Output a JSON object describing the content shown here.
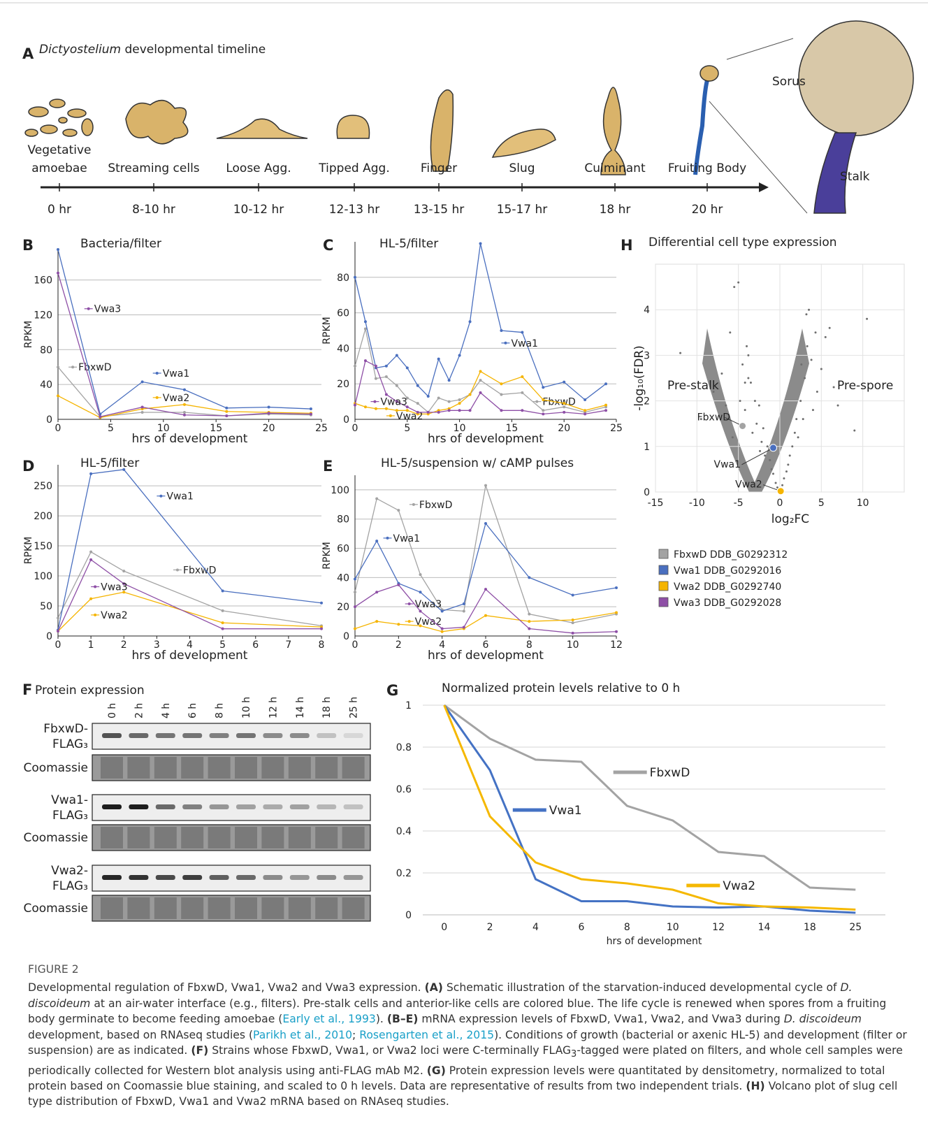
{
  "panel_a": {
    "letter": "A",
    "title_italic": "Dictyostelium",
    "title_rest": " developmental timeline",
    "stages": [
      {
        "name": [
          "Vegetative",
          "amoebae"
        ],
        "time": "0 hr"
      },
      {
        "name": [
          "Streaming cells"
        ],
        "time": "8-10 hr"
      },
      {
        "name": [
          "Loose Agg."
        ],
        "time": "10-12 hr"
      },
      {
        "name": [
          "Tipped Agg."
        ],
        "time": "12-13 hr"
      },
      {
        "name": [
          "Finger"
        ],
        "time": "13-15 hr"
      },
      {
        "name": [
          "Slug"
        ],
        "time": "15-17 hr"
      },
      {
        "name": [
          "Culminant"
        ],
        "time": "18 hr"
      },
      {
        "name": [
          "Fruiting Body"
        ],
        "time": "20 hr"
      }
    ],
    "sorus": "Sorus",
    "stalk": "Stalk"
  },
  "chart_data": [
    {
      "type": "line",
      "letter": "B",
      "title": "Bacteria/filter",
      "ylabel": "RPKM",
      "xlabel": "hrs of development",
      "x": [
        0,
        4,
        8,
        12,
        16,
        20,
        24
      ],
      "xlim": [
        0,
        25
      ],
      "xticks": [
        0,
        5,
        10,
        15,
        20,
        25
      ],
      "ylim": [
        0,
        195
      ],
      "yticks": [
        0,
        40,
        80,
        120,
        160
      ],
      "grid": true,
      "series": [
        {
          "name": "FbxwD",
          "color": "#a3a3a3",
          "values": [
            60,
            3,
            8,
            8,
            4,
            6,
            5
          ]
        },
        {
          "name": "Vwa1",
          "color": "#4a6fbf",
          "values": [
            195,
            6,
            43,
            34,
            13,
            14,
            12
          ]
        },
        {
          "name": "Vwa2",
          "color": "#f5b400",
          "values": [
            27,
            2,
            12,
            17,
            9,
            8,
            7
          ]
        },
        {
          "name": "Vwa3",
          "color": "#8e4fa6",
          "values": [
            168,
            3,
            14,
            5,
            4,
            7,
            6
          ]
        }
      ]
    },
    {
      "type": "line",
      "letter": "C",
      "title": "HL-5/filter",
      "ylabel": "RPKM",
      "xlabel": "hrs of development",
      "x": [
        0,
        1,
        2,
        3,
        4,
        5,
        6,
        7,
        8,
        9,
        10,
        11,
        12,
        14,
        16,
        18,
        20,
        22,
        24
      ],
      "xlim": [
        0,
        25
      ],
      "xticks": [
        0,
        5,
        10,
        15,
        20,
        25
      ],
      "ylim": [
        0,
        100
      ],
      "yticks": [
        0,
        20,
        40,
        60,
        80
      ],
      "grid": true,
      "series": [
        {
          "name": "FbxwD",
          "color": "#a3a3a3",
          "values": [
            30,
            51,
            23,
            24,
            19,
            12,
            9,
            4,
            12,
            10,
            11,
            14,
            22,
            14,
            15,
            5,
            7,
            4,
            7
          ]
        },
        {
          "name": "Vwa1",
          "color": "#4a6fbf",
          "values": [
            80,
            55,
            29,
            30,
            36,
            29,
            19,
            13,
            34,
            22,
            36,
            55,
            99,
            50,
            49,
            18,
            21,
            11,
            20
          ]
        },
        {
          "name": "Vwa2",
          "color": "#f5b400",
          "values": [
            9,
            7,
            6,
            6,
            5,
            5,
            3,
            3,
            5,
            6,
            9,
            14,
            27,
            20,
            24,
            11,
            9,
            5,
            8
          ]
        },
        {
          "name": "Vwa3",
          "color": "#8e4fa6",
          "values": [
            8,
            33,
            30,
            14,
            10,
            7,
            4,
            4,
            4,
            5,
            5,
            5,
            15,
            5,
            5,
            3,
            4,
            3,
            5
          ]
        }
      ]
    },
    {
      "type": "line",
      "letter": "D",
      "title": "HL-5/filter",
      "ylabel": "RPKM",
      "xlabel": "hrs of development",
      "x": [
        0,
        1,
        2,
        5,
        8
      ],
      "xlim": [
        0,
        8
      ],
      "xticks": [
        0,
        1,
        2,
        3,
        4,
        5,
        6,
        7,
        8
      ],
      "ylim": [
        0,
        285
      ],
      "yticks": [
        0,
        50,
        100,
        150,
        200,
        250
      ],
      "grid": true,
      "series": [
        {
          "name": "FbxwD",
          "color": "#a3a3a3",
          "values": [
            30,
            140,
            108,
            42,
            17
          ]
        },
        {
          "name": "Vwa1",
          "color": "#4a6fbf",
          "values": [
            10,
            270,
            277,
            75,
            55
          ]
        },
        {
          "name": "Vwa2",
          "color": "#f5b400",
          "values": [
            8,
            62,
            73,
            22,
            15
          ]
        },
        {
          "name": "Vwa3",
          "color": "#8e4fa6",
          "values": [
            8,
            127,
            87,
            12,
            12
          ]
        }
      ]
    },
    {
      "type": "line",
      "letter": "E",
      "title": "HL-5/suspension w/ cAMP pulses",
      "ylabel": "RPKM",
      "xlabel": "hrs of development",
      "x": [
        0,
        1,
        2,
        3,
        4,
        5,
        6,
        8,
        10,
        12
      ],
      "xlim": [
        0,
        12
      ],
      "xticks": [
        0,
        2,
        4,
        6,
        8,
        10,
        12
      ],
      "ylim": [
        0,
        110
      ],
      "yticks": [
        0,
        20,
        40,
        60,
        80,
        100
      ],
      "grid": true,
      "series": [
        {
          "name": "FbxwD",
          "color": "#a3a3a3",
          "values": [
            30,
            94,
            86,
            42,
            18,
            17,
            103,
            15,
            9,
            15
          ]
        },
        {
          "name": "Vwa1",
          "color": "#4a6fbf",
          "values": [
            39,
            65,
            36,
            30,
            17,
            22,
            77,
            40,
            28,
            33
          ]
        },
        {
          "name": "Vwa2",
          "color": "#f5b400",
          "values": [
            5,
            10,
            8,
            7,
            3,
            5,
            14,
            10,
            11,
            16
          ]
        },
        {
          "name": "Vwa3",
          "color": "#8e4fa6",
          "values": [
            20,
            30,
            35,
            17,
            5,
            6,
            32,
            5,
            2,
            3
          ]
        }
      ]
    },
    {
      "type": "line",
      "letter": "G",
      "title": "Normalized protein levels relative to 0 h",
      "xlabel": "hrs of development",
      "categories": [
        0,
        2,
        4,
        6,
        8,
        10,
        12,
        14,
        18,
        25
      ],
      "ylim": [
        0,
        1
      ],
      "yticks": [
        0,
        0.2,
        0.4,
        0.6,
        0.8,
        1
      ],
      "grid": true,
      "series": [
        {
          "name": "FbxwD",
          "color": "#a3a3a3",
          "values": [
            1,
            0.84,
            0.74,
            0.73,
            0.52,
            0.45,
            0.3,
            0.28,
            0.13,
            0.12
          ]
        },
        {
          "name": "Vwa1",
          "color": "#4472c4",
          "values": [
            1,
            0.69,
            0.17,
            0.065,
            0.065,
            0.04,
            0.035,
            0.04,
            0.02,
            0.01
          ]
        },
        {
          "name": "Vwa2",
          "color": "#f5b800",
          "values": [
            1,
            0.47,
            0.25,
            0.17,
            0.15,
            0.12,
            0.055,
            0.04,
            0.035,
            0.025
          ]
        }
      ]
    },
    {
      "type": "scatter",
      "letter": "H",
      "title": "Differential cell type expression",
      "xlabel": "log₂FC",
      "ylabel": "-log₁₀(FDR)",
      "xlim": [
        -15,
        15
      ],
      "xticks": [
        -15,
        -10,
        -5,
        0,
        5,
        10
      ],
      "ylim": [
        0,
        5
      ],
      "yticks": [
        0,
        1,
        2,
        3,
        4
      ],
      "grid": true,
      "annotations": [
        "Pre-stalk",
        "Pre-spore"
      ],
      "points": {
        "color": "#6e6e6e",
        "x": [
          -12,
          -9.5,
          -8,
          -7,
          -6.5,
          -6,
          -5.5,
          -5,
          -4.8,
          -4.5,
          -4.2,
          -4,
          -3.8,
          -3.5,
          -3.3,
          -3,
          -2.8,
          -2.5,
          -2.2,
          -2,
          -1.8,
          -1.5,
          -1.2,
          -1,
          -0.8,
          -0.5,
          -0.3,
          0.3,
          0.5,
          0.8,
          1,
          1.2,
          1.5,
          1.8,
          2,
          2.2,
          2.5,
          2.8,
          3,
          3.3,
          3.5,
          3.8,
          4,
          4.3,
          4.5,
          5,
          5.5,
          6,
          6.5,
          7,
          9,
          10.5,
          -3.8,
          -4.2,
          3.2,
          2.6,
          -2.4,
          -5.7
        ],
        "y": [
          3.05,
          1.6,
          2.2,
          2.6,
          1.9,
          3.5,
          4.5,
          4.6,
          2.0,
          2.8,
          1.8,
          3.2,
          2.5,
          2.4,
          1.3,
          2.0,
          1.5,
          1.9,
          1.1,
          1.4,
          0.8,
          1.0,
          0.7,
          0.5,
          0.4,
          0.2,
          0.1,
          0.15,
          0.3,
          0.45,
          0.6,
          0.8,
          1.0,
          1.3,
          1.6,
          1.2,
          2.0,
          1.6,
          2.5,
          3.2,
          4.0,
          2.9,
          1.8,
          3.5,
          2.2,
          2.7,
          3.4,
          3.6,
          2.3,
          1.9,
          1.35,
          3.8,
          3.0,
          2.4,
          3.9,
          2.8,
          0.9,
          1.2
        ]
      },
      "highlights": [
        {
          "name": "FbxwD",
          "color": "#a3a3a3",
          "x": -4.5,
          "y": 1.45
        },
        {
          "name": "Vwa1",
          "color": "#4a6fbf",
          "x": -0.8,
          "y": 0.97
        },
        {
          "name": "Vwa2",
          "color": "#f5b400",
          "x": 0.1,
          "y": 0.02
        }
      ]
    }
  ],
  "legend": [
    {
      "name": "FbxwD DDB_G0292312",
      "color": "#a3a3a3"
    },
    {
      "name": "Vwa1 DDB_G0292016",
      "color": "#4a6fbf"
    },
    {
      "name": "Vwa2 DDB_G0292740",
      "color": "#f5b400"
    },
    {
      "name": "Vwa3 DDB_G0292028",
      "color": "#8e4fa6"
    }
  ],
  "panel_f": {
    "letter": "F",
    "title": "Protein expression",
    "lanes": [
      "0 h",
      "2 h",
      "4 h",
      "6 h",
      "8 h",
      "10 h",
      "12 h",
      "14 h",
      "18 h",
      "25 h"
    ],
    "rows": [
      {
        "label": [
          "FbxwD-",
          "FLAG₃"
        ]
      },
      {
        "label": [
          "Coomassie"
        ]
      },
      {
        "label": [
          "Vwa1-",
          "FLAG₃"
        ]
      },
      {
        "label": [
          "Coomassie"
        ]
      },
      {
        "label": [
          "Vwa2-",
          "FLAG₃"
        ]
      },
      {
        "label": [
          "Coomassie"
        ]
      }
    ]
  },
  "caption": {
    "heading": "FIGURE 2",
    "segments": [
      {
        "text": "Developmental regulation of FbxwD, Vwa1, Vwa2 and Vwa3 expression. ",
        "style": "plain"
      },
      {
        "text": "(A)",
        "style": "bold"
      },
      {
        "text": " Schematic illustration of the starvation-induced developmental cycle of ",
        "style": "plain"
      },
      {
        "text": "D. discoideum",
        "style": "italic"
      },
      {
        "text": " at an air-water interface (e.g., filters). Pre-stalk cells and anterior-like cells are colored blue. The life cycle is renewed when spores from a fruiting body germinate to become feeding amoebae (",
        "style": "plain"
      },
      {
        "text": "Early et al., 1993",
        "style": "link"
      },
      {
        "text": "). ",
        "style": "plain"
      },
      {
        "text": "(B–E)",
        "style": "bold"
      },
      {
        "text": " mRNA expression levels of FbxwD, Vwa1, Vwa2, and Vwa3 during ",
        "style": "plain"
      },
      {
        "text": "D. discoideum",
        "style": "italic"
      },
      {
        "text": " development, based on RNAseq studies (",
        "style": "plain"
      },
      {
        "text": "Parikh et al., 2010",
        "style": "link"
      },
      {
        "text": "; ",
        "style": "plain"
      },
      {
        "text": "Rosengarten et al., 2015",
        "style": "link"
      },
      {
        "text": "). Conditions of growth (bacterial or axenic HL-5) and development (filter or suspension) are as indicated. ",
        "style": "plain"
      },
      {
        "text": "(F)",
        "style": "bold"
      },
      {
        "text": " Strains whose FbxwD, Vwa1, or Vwa2 loci were C-terminally FLAG",
        "style": "plain"
      },
      {
        "text": "3",
        "style": "sub"
      },
      {
        "text": "-tagged were plated on filters, and whole cell samples were periodically collected for Western blot analysis using anti-FLAG mAb M2. ",
        "style": "plain"
      },
      {
        "text": "(G)",
        "style": "bold"
      },
      {
        "text": " Protein expression levels were quantitated by densitometry, normalized to total protein based on Coomassie blue staining, and scaled to 0 h levels. Data are representative of results from two independent trials. ",
        "style": "plain"
      },
      {
        "text": "(H)",
        "style": "bold"
      },
      {
        "text": " Volcano plot of slug cell type distribution of FbxwD, Vwa1 and Vwa2 mRNA based on RNAseq studies.",
        "style": "plain"
      }
    ]
  }
}
